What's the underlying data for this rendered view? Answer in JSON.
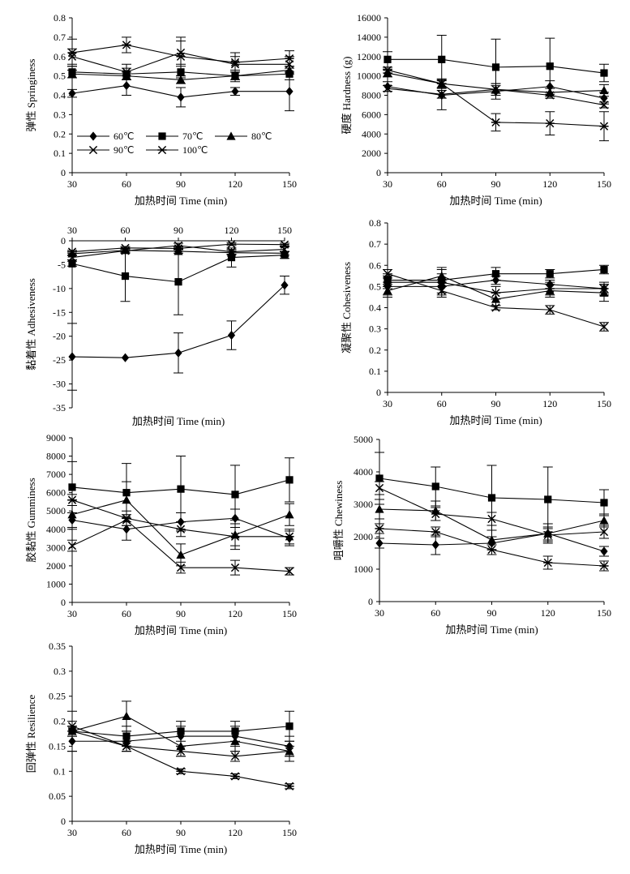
{
  "xlabel": "加热时间 Time (min)",
  "x": [
    30,
    60,
    90,
    120,
    150
  ],
  "legend": [
    {
      "label": "60℃",
      "marker": "diamond"
    },
    {
      "label": "70℃",
      "marker": "square"
    },
    {
      "label": "80℃",
      "marker": "triangle"
    },
    {
      "label": "90℃",
      "marker": "x"
    },
    {
      "label": "100℃",
      "marker": "star"
    }
  ],
  "chart_data": [
    {
      "type": "line",
      "ylabel": "弹性 Springiness",
      "ylim": [
        0,
        0.8
      ],
      "yticks": [
        "0",
        "0.1",
        "0.2",
        "0.3",
        "0.4",
        "0.5",
        "0.6",
        "0.7",
        "0.8"
      ],
      "x": [
        30,
        60,
        90,
        120,
        150
      ],
      "series": [
        {
          "name": "60℃",
          "values": [
            0.41,
            0.45,
            0.39,
            0.42,
            0.42
          ],
          "err": [
            0.02,
            0.05,
            0.05,
            0.02,
            0.1
          ]
        },
        {
          "name": "70℃",
          "values": [
            0.52,
            0.51,
            0.52,
            0.5,
            0.51
          ],
          "err": [
            0.03,
            0.03,
            0.03,
            0.03,
            0.03
          ]
        },
        {
          "name": "80℃",
          "values": [
            0.51,
            0.5,
            0.48,
            0.5,
            0.53
          ],
          "err": [
            0.02,
            0.02,
            0.02,
            0.02,
            0.02
          ]
        },
        {
          "name": "90℃",
          "values": [
            0.6,
            0.52,
            0.62,
            0.56,
            0.56
          ],
          "err": [
            0.04,
            0.04,
            0.06,
            0.04,
            0.04
          ]
        },
        {
          "name": "100℃",
          "values": [
            0.62,
            0.66,
            0.6,
            0.57,
            0.59
          ],
          "err": [
            0.07,
            0.04,
            0.1,
            0.05,
            0.04
          ]
        }
      ]
    },
    {
      "type": "line",
      "ylabel": "硬度 Hardness (g)",
      "ylim": [
        0,
        16000
      ],
      "yticks": [
        "0",
        "2000",
        "4000",
        "6000",
        "8000",
        "10000",
        "12000",
        "14000",
        "16000"
      ],
      "x": [
        30,
        60,
        90,
        120,
        150
      ],
      "series": [
        {
          "name": "60℃",
          "values": [
            8900,
            8000,
            8400,
            8900,
            7700
          ],
          "err": [
            500,
            1500,
            800,
            600,
            600
          ]
        },
        {
          "name": "70℃",
          "values": [
            11700,
            11700,
            10900,
            11000,
            10300
          ],
          "err": [
            800,
            2500,
            2900,
            2900,
            900
          ]
        },
        {
          "name": "80℃",
          "values": [
            10300,
            9200,
            8600,
            8300,
            8500
          ],
          "err": [
            400,
            400,
            600,
            400,
            600
          ]
        },
        {
          "name": "90℃",
          "values": [
            8700,
            8100,
            8600,
            8000,
            7000
          ],
          "err": [
            300,
            400,
            400,
            300,
            300
          ]
        },
        {
          "name": "100℃",
          "values": [
            10600,
            9200,
            5200,
            5100,
            4800
          ],
          "err": [
            300,
            500,
            900,
            1200,
            1500
          ]
        }
      ]
    },
    {
      "type": "line",
      "ylabel": "黏着性 Adhesiveness",
      "ylim": [
        -35,
        0
      ],
      "xaxis_top": true,
      "yticks": [
        "-35",
        "-30",
        "-25",
        "-20",
        "-15",
        "-10",
        "-5",
        "0"
      ],
      "x": [
        30,
        60,
        90,
        120,
        150
      ],
      "series": [
        {
          "name": "60℃",
          "values": [
            -24.3,
            -24.5,
            -23.5,
            -19.8,
            -9.3
          ],
          "err": [
            7,
            0,
            4.2,
            3.0,
            1.9
          ]
        },
        {
          "name": "70℃",
          "values": [
            -4.8,
            -7.4,
            -8.6,
            -3.5,
            -3.0
          ],
          "err": [
            0.5,
            5.3,
            6.9,
            2.0,
            0.7
          ]
        },
        {
          "name": "80℃",
          "values": [
            -2.7,
            -2.0,
            -2.2,
            -2.5,
            -2.6
          ],
          "err": [
            0.4,
            0.4,
            0.4,
            0.4,
            0.4
          ]
        },
        {
          "name": "90℃",
          "values": [
            -3.5,
            -2.1,
            -1.0,
            -2.3,
            -1.8
          ],
          "err": [
            0.5,
            0.5,
            0.5,
            0.5,
            0.5
          ]
        },
        {
          "name": "100℃",
          "values": [
            -2.3,
            -1.5,
            -1.6,
            -0.7,
            -0.8
          ],
          "err": [
            0.3,
            0.3,
            0.3,
            0.3,
            0.3
          ]
        }
      ]
    },
    {
      "type": "line",
      "ylabel": "凝聚性 Cohesiveness",
      "ylim": [
        0,
        0.8
      ],
      "yticks": [
        "0",
        "0.1",
        "0.2",
        "0.3",
        "0.4",
        "0.5",
        "0.6",
        "0.7",
        "0.8"
      ],
      "x": [
        30,
        60,
        90,
        120,
        150
      ],
      "series": [
        {
          "name": "60℃",
          "values": [
            0.5,
            0.5,
            0.53,
            0.51,
            0.49
          ],
          "err": [
            0.04,
            0.03,
            0.02,
            0.02,
            0.02
          ]
        },
        {
          "name": "70℃",
          "values": [
            0.53,
            0.53,
            0.56,
            0.56,
            0.58
          ],
          "err": [
            0.03,
            0.03,
            0.03,
            0.02,
            0.02
          ]
        },
        {
          "name": "80℃",
          "values": [
            0.48,
            0.55,
            0.44,
            0.48,
            0.47
          ],
          "err": [
            0.03,
            0.03,
            0.03,
            0.03,
            0.04
          ]
        },
        {
          "name": "90℃",
          "values": [
            0.56,
            0.48,
            0.4,
            0.39,
            0.31
          ],
          "err": [
            0.02,
            0.02,
            0.01,
            0.02,
            0.02
          ]
        },
        {
          "name": "100℃",
          "values": [
            0.52,
            0.52,
            0.47,
            0.49,
            0.49
          ],
          "err": [
            0.03,
            0.07,
            0.03,
            0.03,
            0.03
          ]
        }
      ]
    },
    {
      "type": "line",
      "ylabel": "胶黏性 Gumminess",
      "ylim": [
        0,
        9000
      ],
      "yticks": [
        "0",
        "1000",
        "2000",
        "3000",
        "4000",
        "5000",
        "6000",
        "7000",
        "8000",
        "9000"
      ],
      "x": [
        30,
        60,
        90,
        120,
        150
      ],
      "series": [
        {
          "name": "60℃",
          "values": [
            4500,
            4000,
            4400,
            4600,
            3500
          ],
          "err": [
            400,
            600,
            500,
            500,
            400
          ]
        },
        {
          "name": "70℃",
          "values": [
            6300,
            6000,
            6200,
            5900,
            6700
          ],
          "err": [
            1400,
            1600,
            1800,
            1600,
            1200
          ]
        },
        {
          "name": "80℃",
          "values": [
            4800,
            5600,
            2600,
            3700,
            4800
          ],
          "err": [
            800,
            1000,
            600,
            800,
            600
          ]
        },
        {
          "name": "90℃",
          "values": [
            3100,
            4500,
            1900,
            1900,
            1700
          ],
          "err": [
            300,
            300,
            300,
            400,
            200
          ]
        },
        {
          "name": "100℃",
          "values": [
            5600,
            4600,
            4000,
            3600,
            3600
          ],
          "err": [
            300,
            400,
            400,
            500,
            400
          ]
        }
      ]
    },
    {
      "type": "line",
      "ylabel": "咀嚼性 Chewiness",
      "ylim": [
        0,
        5000
      ],
      "yticks": [
        "0",
        "1000",
        "2000",
        "3000",
        "4000",
        "5000"
      ],
      "x": [
        30,
        60,
        90,
        120,
        150
      ],
      "series": [
        {
          "name": "60℃",
          "values": [
            1800,
            1750,
            1800,
            2100,
            1550
          ],
          "err": [
            150,
            300,
            200,
            200,
            150
          ]
        },
        {
          "name": "70℃",
          "values": [
            3800,
            3550,
            3200,
            3150,
            3050
          ],
          "err": [
            800,
            600,
            1000,
            1000,
            400
          ]
        },
        {
          "name": "80℃",
          "values": [
            2850,
            2800,
            1900,
            2100,
            2500
          ],
          "err": [
            300,
            300,
            300,
            300,
            200
          ]
        },
        {
          "name": "90℃",
          "values": [
            3500,
            2700,
            2550,
            2050,
            2150
          ],
          "err": [
            200,
            200,
            200,
            200,
            200
          ]
        },
        {
          "name": "100℃",
          "values": [
            2250,
            2150,
            1600,
            1200,
            1100
          ],
          "err": [
            150,
            150,
            150,
            200,
            150
          ]
        }
      ]
    },
    {
      "type": "line",
      "ylabel": "回弹性 Resilience",
      "ylim": [
        0,
        0.35
      ],
      "yticks": [
        "0",
        "0.05",
        "0.1",
        "0.15",
        "0.2",
        "0.25",
        "0.3",
        "0.35"
      ],
      "x": [
        30,
        60,
        90,
        120,
        150
      ],
      "series": [
        {
          "name": "60℃",
          "values": [
            0.16,
            0.16,
            0.17,
            0.17,
            0.15
          ],
          "err": [
            0.02,
            0.02,
            0.02,
            0.02,
            0.02
          ]
        },
        {
          "name": "70℃",
          "values": [
            0.18,
            0.17,
            0.18,
            0.18,
            0.19
          ],
          "err": [
            0.04,
            0.02,
            0.02,
            0.02,
            0.03
          ]
        },
        {
          "name": "80℃",
          "values": [
            0.18,
            0.21,
            0.15,
            0.16,
            0.14
          ],
          "err": [
            0.01,
            0.03,
            0.02,
            0.02,
            0.02
          ]
        },
        {
          "name": "90℃",
          "values": [
            0.18,
            0.15,
            0.14,
            0.13,
            0.14
          ],
          "err": [
            0.01,
            0.01,
            0.01,
            0.01,
            0.01
          ]
        },
        {
          "name": "100℃",
          "values": [
            0.19,
            0.15,
            0.1,
            0.09,
            0.07
          ],
          "err": [
            0.01,
            0.01,
            0.005,
            0.005,
            0.005
          ]
        }
      ]
    }
  ]
}
